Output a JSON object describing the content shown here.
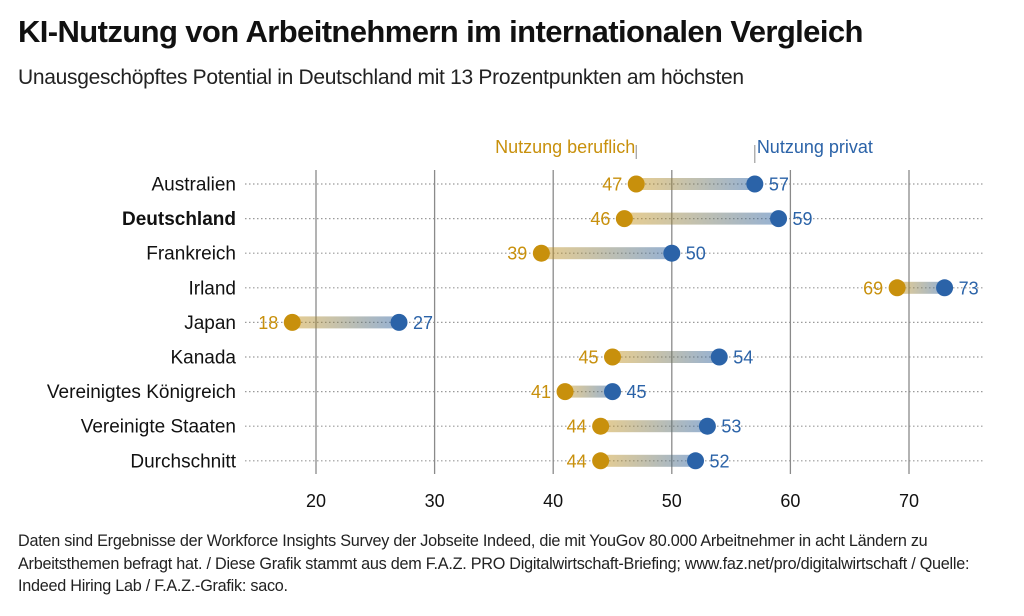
{
  "header": {
    "title": "KI-Nutzung von Arbeitnehmern im internationalen Vergleich",
    "subtitle": "Unausgeschöpftes Potential in Deutschland mit 13 Prozentpunkten am höchsten"
  },
  "footer": {
    "note": "Daten sind Ergebnisse der Workforce Insights Survey der Jobseite Indeed, die mit YouGov 80.000 Arbeitnehmer in acht Ländern zu Arbeitsthemen befragt hat. / Diese Grafik stammt aus dem F.A.Z. PRO Digitalwirtschaft-Briefing; www.faz.net/pro/digitalwirtschaft / Quelle: Indeed Hiring Lab / F.A.Z.-Grafik: saco."
  },
  "colors": {
    "beruflich": "#C8900C",
    "privat": "#2B63A8",
    "grid": "#8a8a8a",
    "dots": "#9a9a9a"
  },
  "chart_data": {
    "type": "dumbbell",
    "title": "KI-Nutzung von Arbeitnehmern im internationalen Vergleich",
    "subtitle": "Unausgeschöpftes Potential in Deutschland mit 13 Prozentpunkten am höchsten",
    "xlabel": "",
    "ylabel": "",
    "xlim": [
      15,
      76
    ],
    "xticks": [
      20,
      30,
      40,
      50,
      60,
      70
    ],
    "grid": true,
    "legend": {
      "placement": "top",
      "entries": [
        {
          "name": "Nutzung beruflich",
          "anchor_category": "Australien"
        },
        {
          "name": "Nutzung privat",
          "anchor_category": "Australien"
        }
      ]
    },
    "categories": [
      "Australien",
      "Deutschland",
      "Frankreich",
      "Irland",
      "Japan",
      "Kanada",
      "Vereinigtes Königreich",
      "Vereinigte Staaten",
      "Durchschnitt"
    ],
    "highlight": "Deutschland",
    "series": [
      {
        "name": "Nutzung beruflich",
        "values": [
          47,
          46,
          39,
          69,
          18,
          45,
          41,
          44,
          44
        ]
      },
      {
        "name": "Nutzung privat",
        "values": [
          57,
          59,
          50,
          73,
          27,
          54,
          45,
          53,
          52
        ]
      }
    ]
  }
}
